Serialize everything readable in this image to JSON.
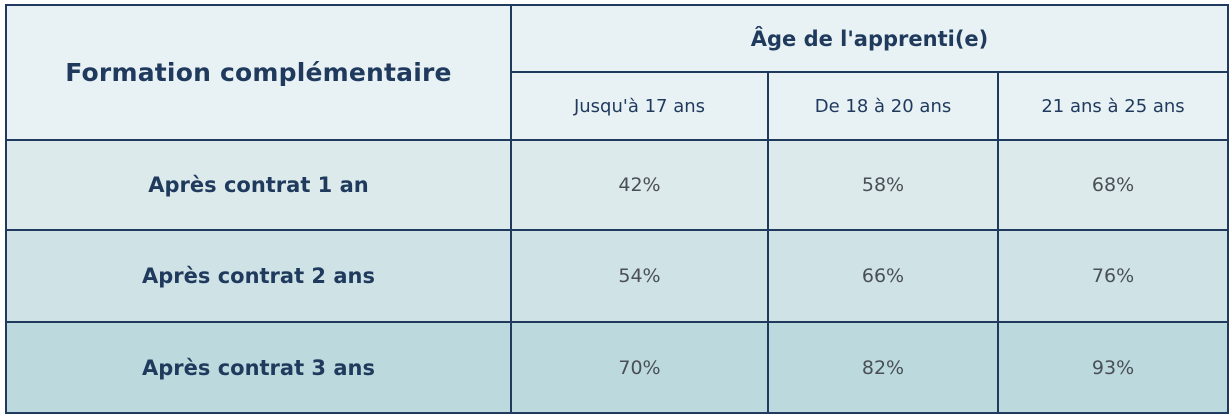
{
  "table": {
    "corner_label": "Formation complémentaire",
    "age_header": "Âge de l'apprenti(e)",
    "columns": [
      "Jusqu'à 17 ans",
      "De 18 à 20 ans",
      "21 ans à 25 ans"
    ],
    "rows": [
      {
        "label": "Après contrat 1 an",
        "values": [
          "42%",
          "58%",
          "68%"
        ]
      },
      {
        "label": "Après contrat 2 ans",
        "values": [
          "54%",
          "66%",
          "76%"
        ]
      },
      {
        "label": "Après contrat 3 ans",
        "values": [
          "70%",
          "82%",
          "93%"
        ]
      }
    ]
  },
  "colors": {
    "border": "#1f3a5c",
    "header_bg": "#e8f1f4",
    "row1_bg": "#dceaec",
    "row2_bg": "#cfe3e6",
    "row3_bg": "#bcdade",
    "heading_text": "#1f3a5c",
    "value_text": "#4a4f55"
  }
}
